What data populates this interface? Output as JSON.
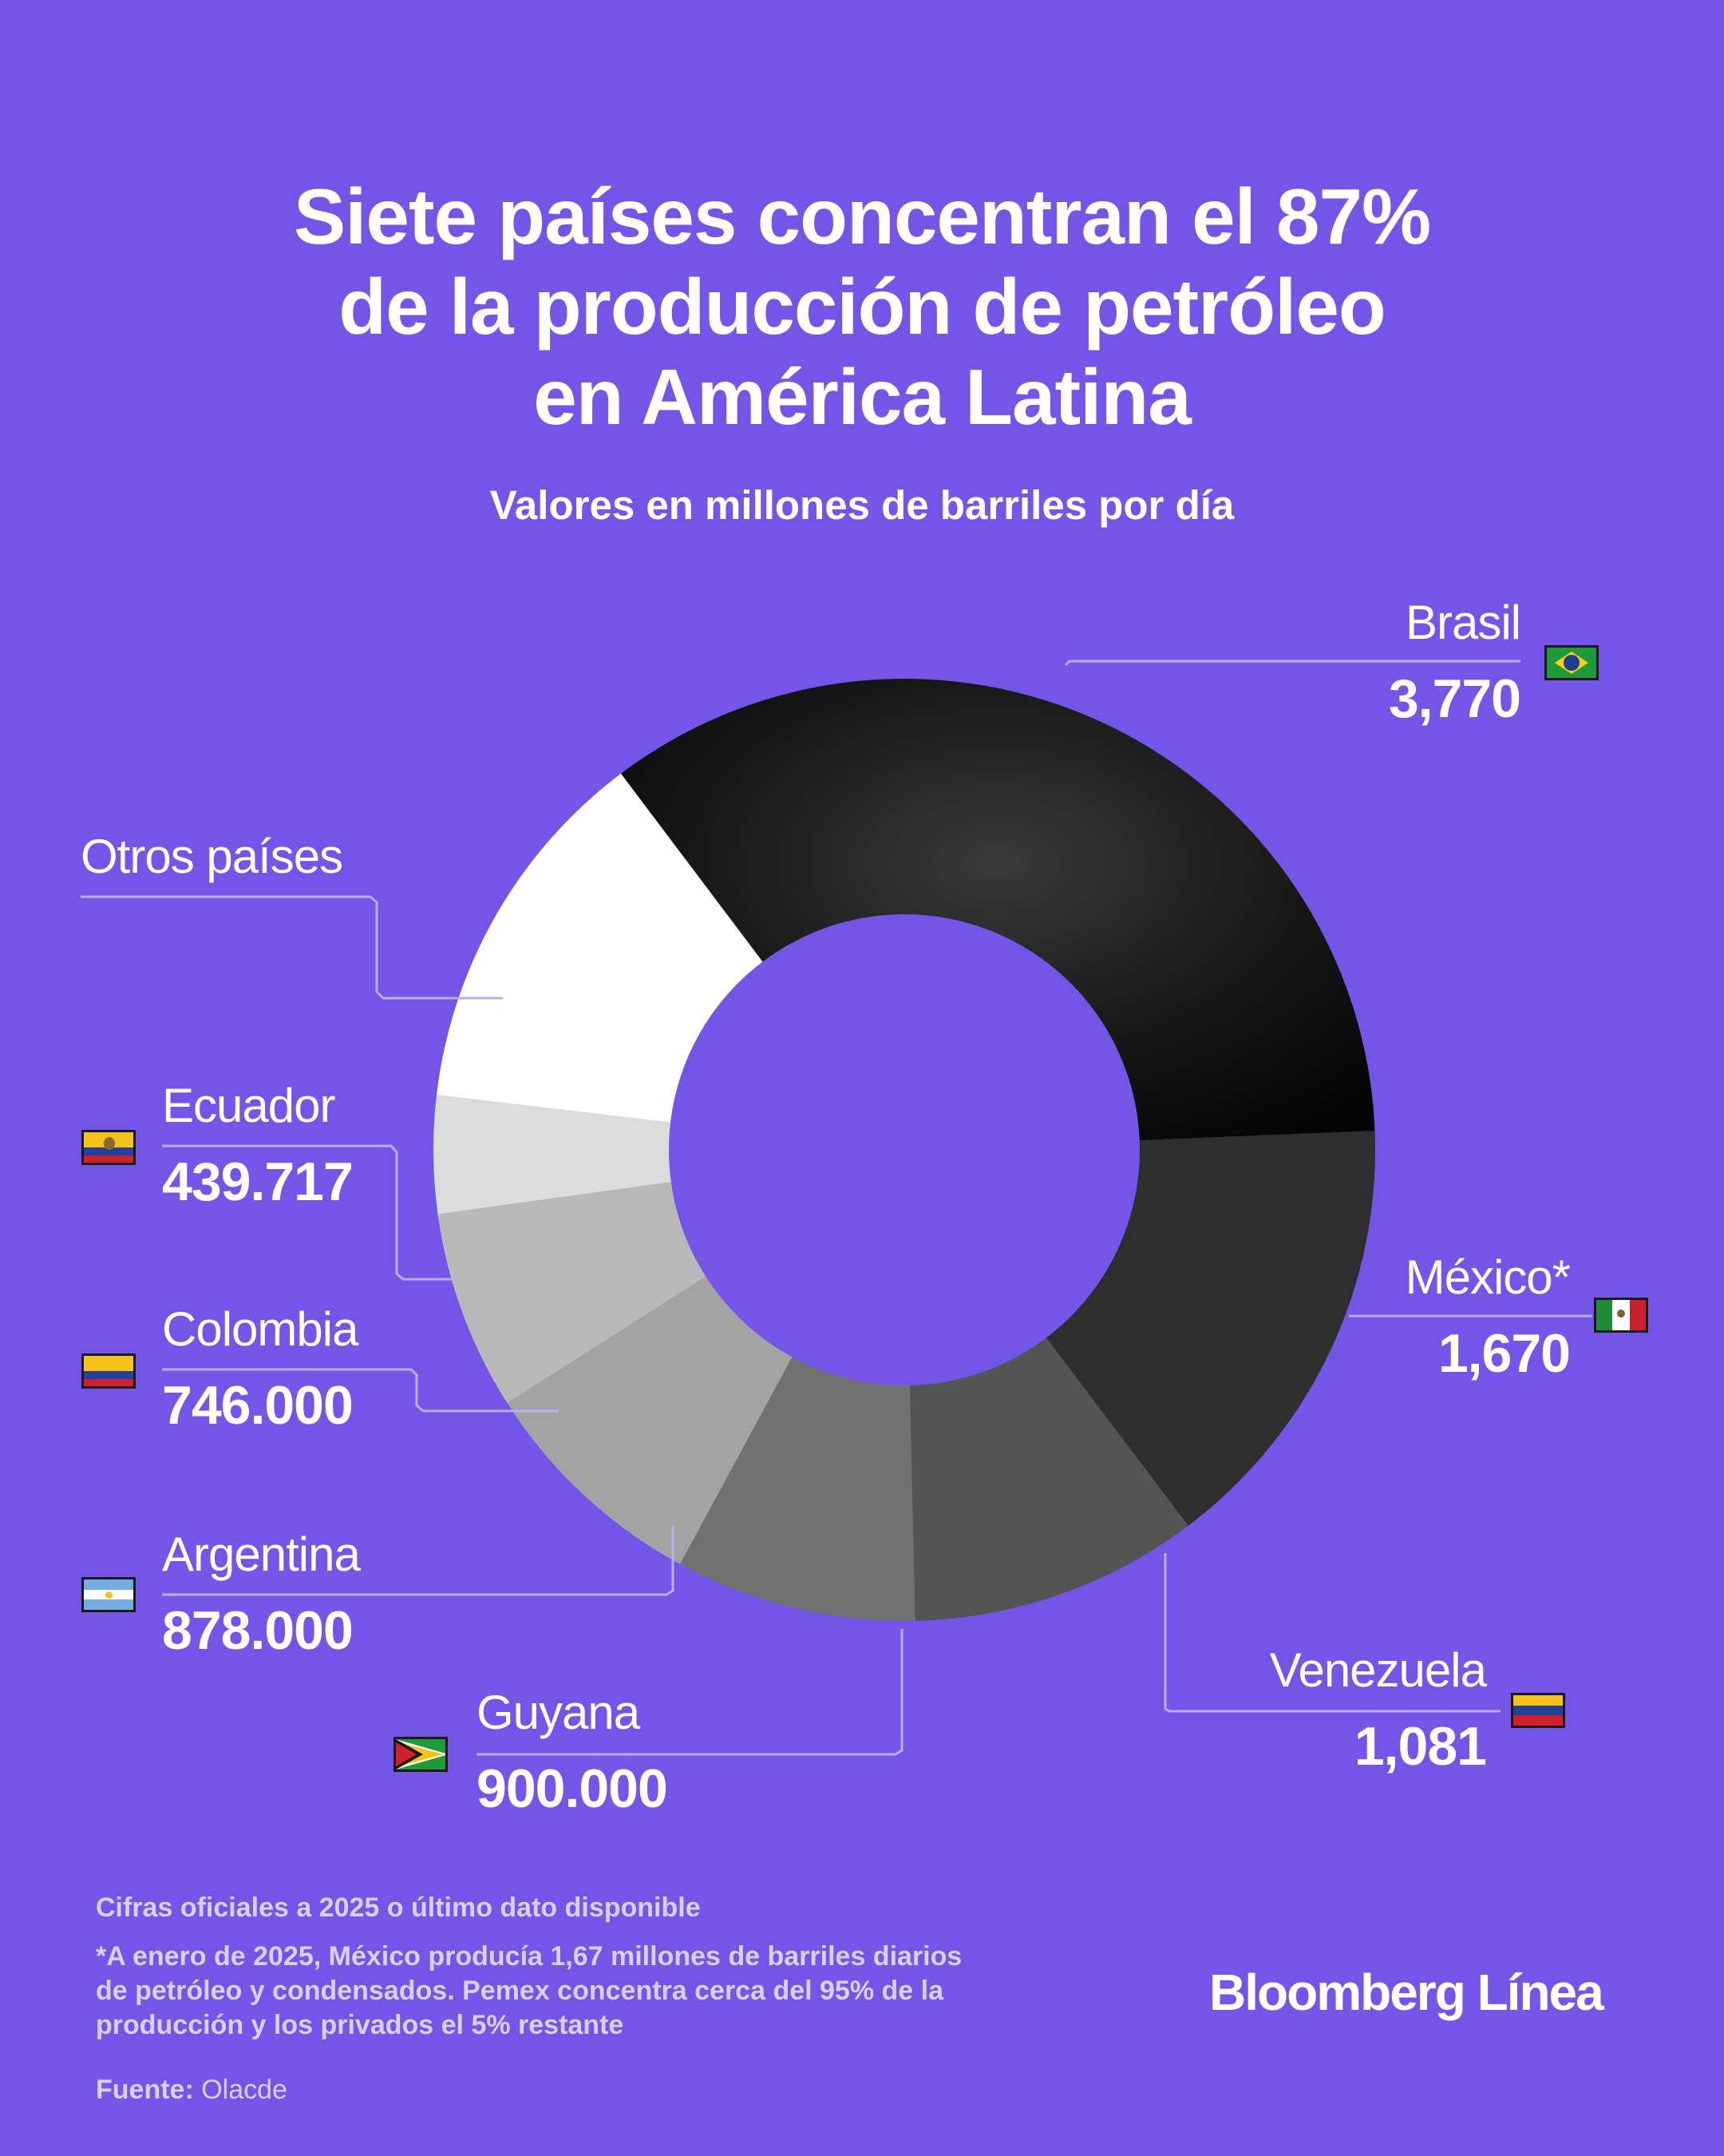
{
  "title_lines": [
    "Siete países concentran el 87%",
    "de la producción de petróleo",
    "en América Latina"
  ],
  "subtitle": "Valores en millones de barriles por día",
  "chart_data": {
    "type": "donut",
    "unit": "millones de barriles por día",
    "series": [
      {
        "name": "Brasil",
        "label": "3,770",
        "value": 3.77,
        "color": "#1c1c1c",
        "flag": "brazil-flag"
      },
      {
        "name": "México*",
        "label": "1,670",
        "value": 1.67,
        "color": "#2e2e2e",
        "flag": "mexico-flag"
      },
      {
        "name": "Venezuela",
        "label": "1,081",
        "value": 1.081,
        "color": "#545454",
        "flag": "venezuela-flag"
      },
      {
        "name": "Guyana",
        "label": "900.000",
        "value": 0.9,
        "color": "#717171",
        "flag": "guyana-flag"
      },
      {
        "name": "Argentina",
        "label": "878.000",
        "value": 0.878,
        "color": "#a3a3a3",
        "flag": "argentina-flag"
      },
      {
        "name": "Colombia",
        "label": "746.000",
        "value": 0.746,
        "color": "#b9b9b9",
        "flag": "colombia-flag"
      },
      {
        "name": "Ecuador",
        "label": "439.717",
        "value": 0.4397,
        "color": "#dcdcdc",
        "flag": "ecuador-flag"
      },
      {
        "name": "Otros países",
        "label": "",
        "value": 1.4,
        "color": "#ffffff",
        "flag": ""
      }
    ]
  },
  "notes": {
    "line1": "Cifras oficiales a 2025 o último dato disponible",
    "line2": "*A enero de 2025, México producía 1,67 millones de barriles diarios de petróleo y condensados. Pemex concentra cerca del 95% de la producción y los privados el 5% restante",
    "source_label": "Fuente:",
    "source_value": "Olacde"
  },
  "brand": "Bloomberg Línea"
}
